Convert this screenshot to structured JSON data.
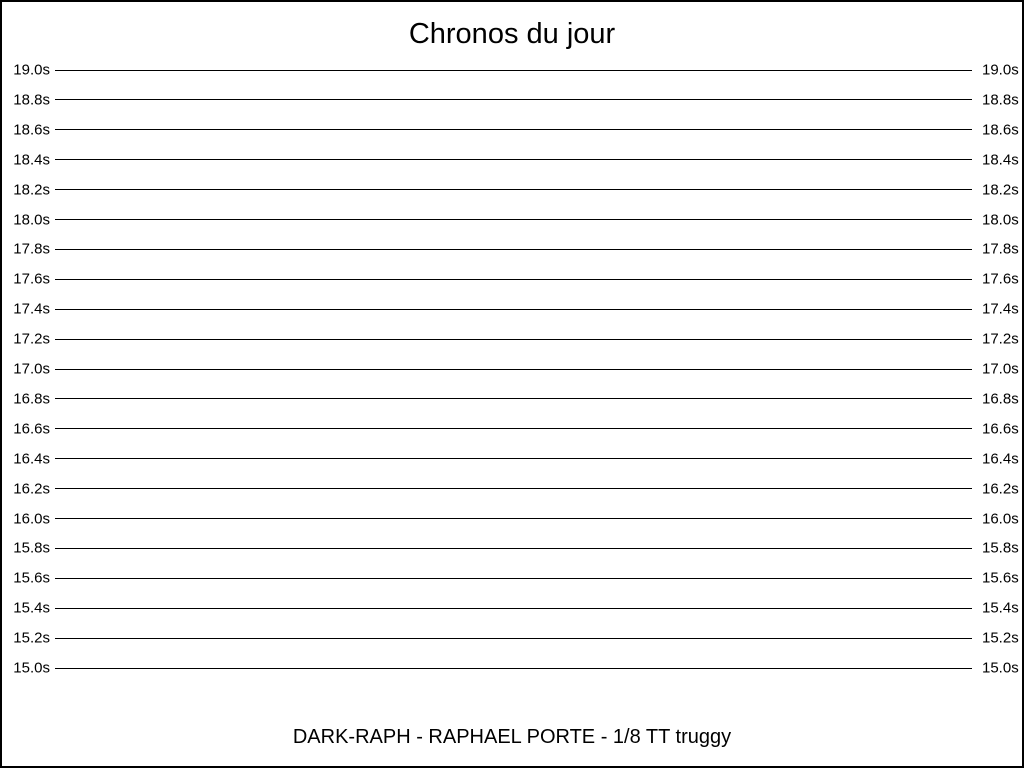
{
  "window": {
    "background": "#ffffff",
    "border_color": "#000000"
  },
  "chart_data": {
    "type": "line",
    "title": "Chronos du jour",
    "xlabel": "",
    "ylabel": "",
    "y_unit": "s",
    "ylim": [
      15.0,
      19.0
    ],
    "ytick_step": 0.2,
    "ytick_labels": [
      "19.0s",
      "18.8s",
      "18.6s",
      "18.4s",
      "18.2s",
      "18.0s",
      "17.8s",
      "17.6s",
      "17.4s",
      "17.2s",
      "17.0s",
      "16.8s",
      "16.6s",
      "16.4s",
      "16.2s",
      "16.0s",
      "15.8s",
      "15.6s",
      "15.4s",
      "15.2s",
      "15.0s"
    ],
    "ytick_values": [
      19.0,
      18.8,
      18.6,
      18.4,
      18.2,
      18.0,
      17.8,
      17.6,
      17.4,
      17.2,
      17.0,
      16.8,
      16.6,
      16.4,
      16.2,
      16.0,
      15.8,
      15.6,
      15.4,
      15.2,
      15.0
    ],
    "grid": "horizontal",
    "tick_labels_position": "both-sides",
    "legend": "none",
    "series": [],
    "caption": "DARK-RAPH - RAPHAEL PORTE - 1/8 TT truggy",
    "colors": {
      "grid": "#000000",
      "text": "#000000",
      "background": "#ffffff"
    }
  }
}
